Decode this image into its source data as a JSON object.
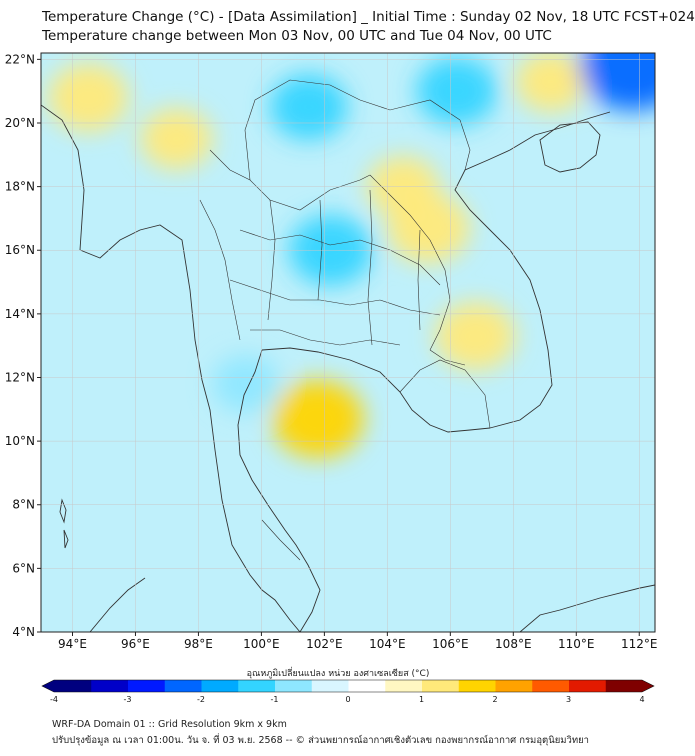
{
  "title_line1": "Temperature Change (°C) - [Data Assimilation] _ Initial Time : Sunday 02 Nov, 18 UTC FCST+024",
  "title_line2": "Temperature change between Mon 03 Nov, 00 UTC and Tue 04 Nov, 00 UTC",
  "colorbar_label": "อุณหภูมิเปลี่ยนแปลง หน่วย องศาเซลเซียส (°C)",
  "footer_line1": "WRF-DA Domain 01 :: Grid Resolution 9km x 9km",
  "footer_line2": "ปรับปรุงข้อมูล ณ เวลา 01:00น. วัน จ. ที่ 03 พ.ย. 2568 -- © ส่วนพยากรณ์อากาศเชิงตัวเลข กองพยากรณ์อากาศ กรมอุตุนิยมวิทยา",
  "lon_ticks": [
    "94°E",
    "96°E",
    "98°E",
    "100°E",
    "102°E",
    "104°E",
    "106°E",
    "108°E",
    "110°E",
    "112°E"
  ],
  "lat_ticks": [
    "4°N",
    "6°N",
    "8°N",
    "10°N",
    "12°N",
    "14°N",
    "16°N",
    "18°N",
    "20°N",
    "22°N"
  ],
  "lon_values": [
    94,
    96,
    98,
    100,
    102,
    104,
    106,
    108,
    110,
    112
  ],
  "lat_values": [
    4,
    6,
    8,
    10,
    12,
    14,
    16,
    18,
    20,
    22
  ],
  "extent": {
    "lon_min": 93,
    "lon_max": 112.5,
    "lat_min": 4,
    "lat_max": 22.2
  },
  "colorbar": {
    "ticks": [
      "-4",
      "-3",
      "-2",
      "-1",
      "0",
      "1",
      "2",
      "3",
      "4"
    ],
    "tick_values": [
      -4,
      -3,
      -2,
      -1,
      0,
      1,
      2,
      3,
      4
    ],
    "min": -4,
    "max": 4,
    "colors": [
      "#00007f",
      "#0000c8",
      "#0019ff",
      "#0066ff",
      "#00aaff",
      "#33d4ff",
      "#8ee7ff",
      "#d9f6ff",
      "#ffffff",
      "#fff7c2",
      "#ffe97a",
      "#ffd400",
      "#ffa200",
      "#ff5a00",
      "#e31a00",
      "#7f0000"
    ]
  },
  "map_features": [
    {
      "label": "warm anomaly",
      "lon": 94.5,
      "lat": 20.8,
      "value": 1.3
    },
    {
      "label": "warm anomaly",
      "lon": 97.3,
      "lat": 19.5,
      "value": 1.0
    },
    {
      "label": "warm anomaly",
      "lon": 101.8,
      "lat": 10.7,
      "value": 1.7
    },
    {
      "label": "warm anomaly",
      "lon": 105.3,
      "lat": 16.7,
      "value": 1.4
    },
    {
      "label": "warm anomaly",
      "lon": 106.8,
      "lat": 13.3,
      "value": 1.3
    },
    {
      "label": "warm anomaly",
      "lon": 104.5,
      "lat": 18.0,
      "value": 1.0
    },
    {
      "label": "warm anomaly",
      "lon": 109.2,
      "lat": 21.3,
      "value": 1.0
    },
    {
      "label": "cool anomaly",
      "lon": 101.5,
      "lat": 20.5,
      "value": -1.2
    },
    {
      "label": "cool anomaly",
      "lon": 102.2,
      "lat": 16.0,
      "value": -1.4
    },
    {
      "label": "cool anomaly",
      "lon": 106.2,
      "lat": 21.0,
      "value": -1.3
    },
    {
      "label": "cool anomaly",
      "lon": 111.8,
      "lat": 21.8,
      "value": -2.2
    },
    {
      "label": "cool anomaly",
      "lon": 99.5,
      "lat": 11.8,
      "value": -0.8
    }
  ]
}
